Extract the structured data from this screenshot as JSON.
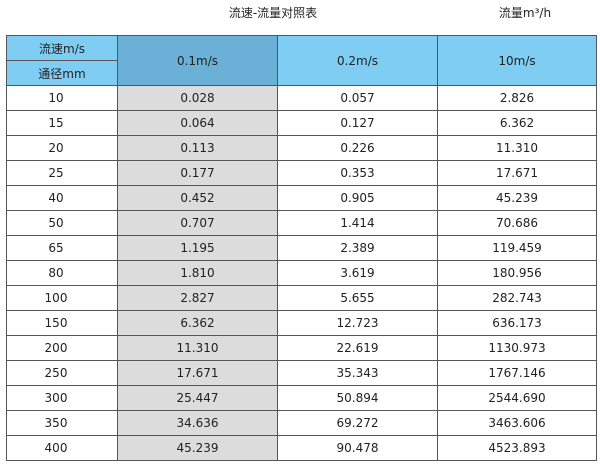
{
  "title": "流速-流量对照表",
  "unit_label": "流量m³/h",
  "colors": {
    "header": "#7fcdf3",
    "header_selected": "#6bb0d6",
    "highlight_column": "#dcdcdc"
  },
  "header": {
    "velocity_label": "流速m/s",
    "diameter_label": "通径mm",
    "columns": [
      "0.1m/s",
      "0.2m/s",
      "10m/s"
    ]
  },
  "rows": [
    [
      "10",
      "0.028",
      "0.057",
      "2.826"
    ],
    [
      "15",
      "0.064",
      "0.127",
      "6.362"
    ],
    [
      "20",
      "0.113",
      "0.226",
      "11.310"
    ],
    [
      "25",
      "0.177",
      "0.353",
      "17.671"
    ],
    [
      "40",
      "0.452",
      "0.905",
      "45.239"
    ],
    [
      "50",
      "0.707",
      "1.414",
      "70.686"
    ],
    [
      "65",
      "1.195",
      "2.389",
      "119.459"
    ],
    [
      "80",
      "1.810",
      "3.619",
      "180.956"
    ],
    [
      "100",
      "2.827",
      "5.655",
      "282.743"
    ],
    [
      "150",
      "6.362",
      "12.723",
      "636.173"
    ],
    [
      "200",
      "11.310",
      "22.619",
      "1130.973"
    ],
    [
      "250",
      "17.671",
      "35.343",
      "1767.146"
    ],
    [
      "300",
      "25.447",
      "50.894",
      "2544.690"
    ],
    [
      "350",
      "34.636",
      "69.272",
      "3463.606"
    ],
    [
      "400",
      "45.239",
      "90.478",
      "4523.893"
    ]
  ]
}
